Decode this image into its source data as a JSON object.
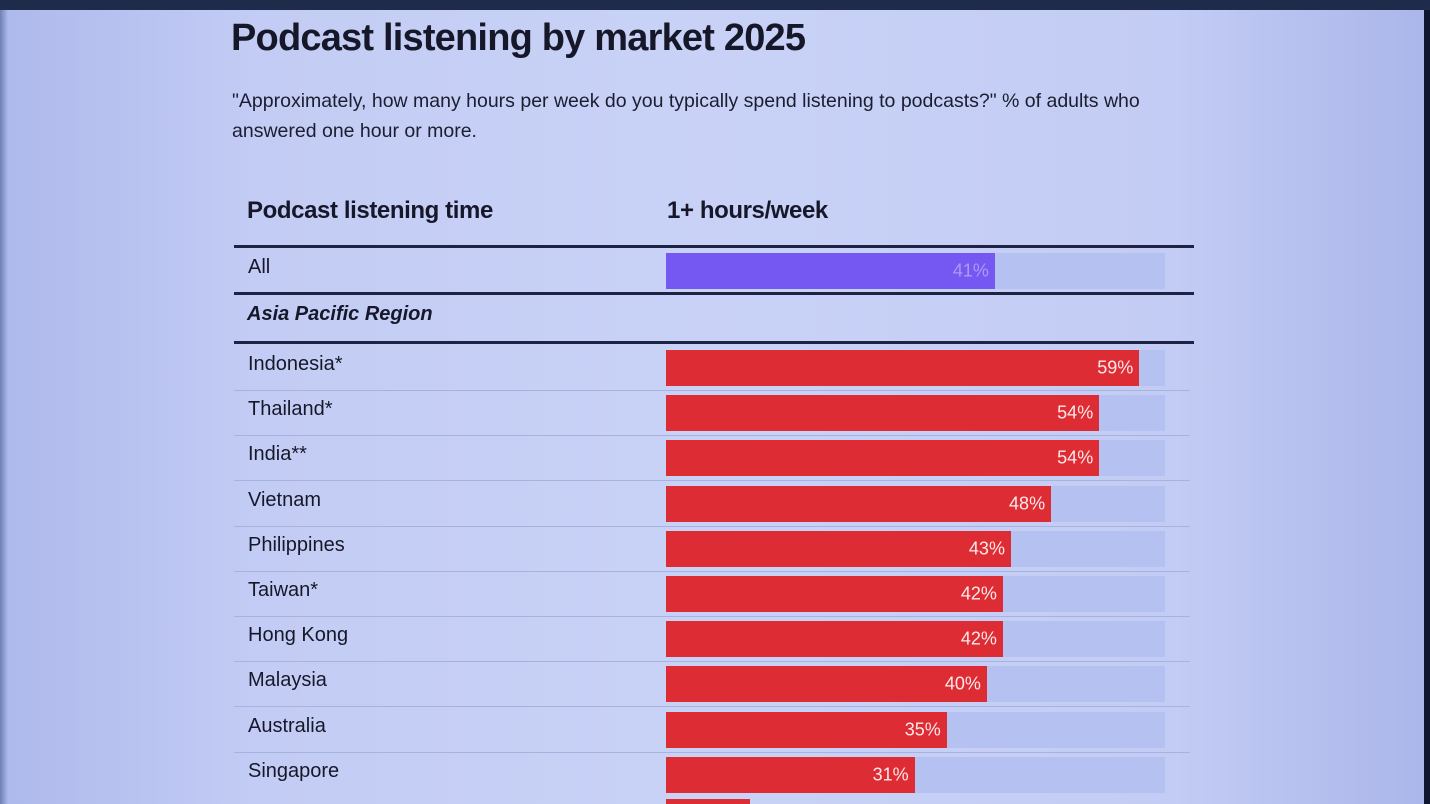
{
  "chart_data": {
    "type": "bar",
    "title": "Podcast listening by market 2025",
    "subtitle": "\"Approximately, how many hours per week do you typically spend listening to podcasts?\" % of adults who answered one hour or more.",
    "column_headers": {
      "market": "Podcast listening time",
      "value": "1+ hours/week"
    },
    "overall": {
      "label": "All",
      "value": 41,
      "value_label": "41%"
    },
    "region": "Asia Pacific Region",
    "categories": [
      "Indonesia*",
      "Thailand*",
      "India**",
      "Vietnam",
      "Philippines",
      "Taiwan*",
      "Hong Kong",
      "Malaysia",
      "Australia",
      "Singapore"
    ],
    "values": [
      59,
      54,
      54,
      48,
      43,
      42,
      42,
      40,
      35,
      31
    ],
    "value_labels": [
      "59%",
      "54%",
      "54%",
      "48%",
      "43%",
      "42%",
      "42%",
      "40%",
      "35%",
      "31%"
    ],
    "xlim": [
      0,
      100
    ],
    "unit": "%"
  },
  "colors": {
    "region_bar": "#de2c34",
    "overall_bar": "#7558f2",
    "track": "#b5c1f1"
  }
}
